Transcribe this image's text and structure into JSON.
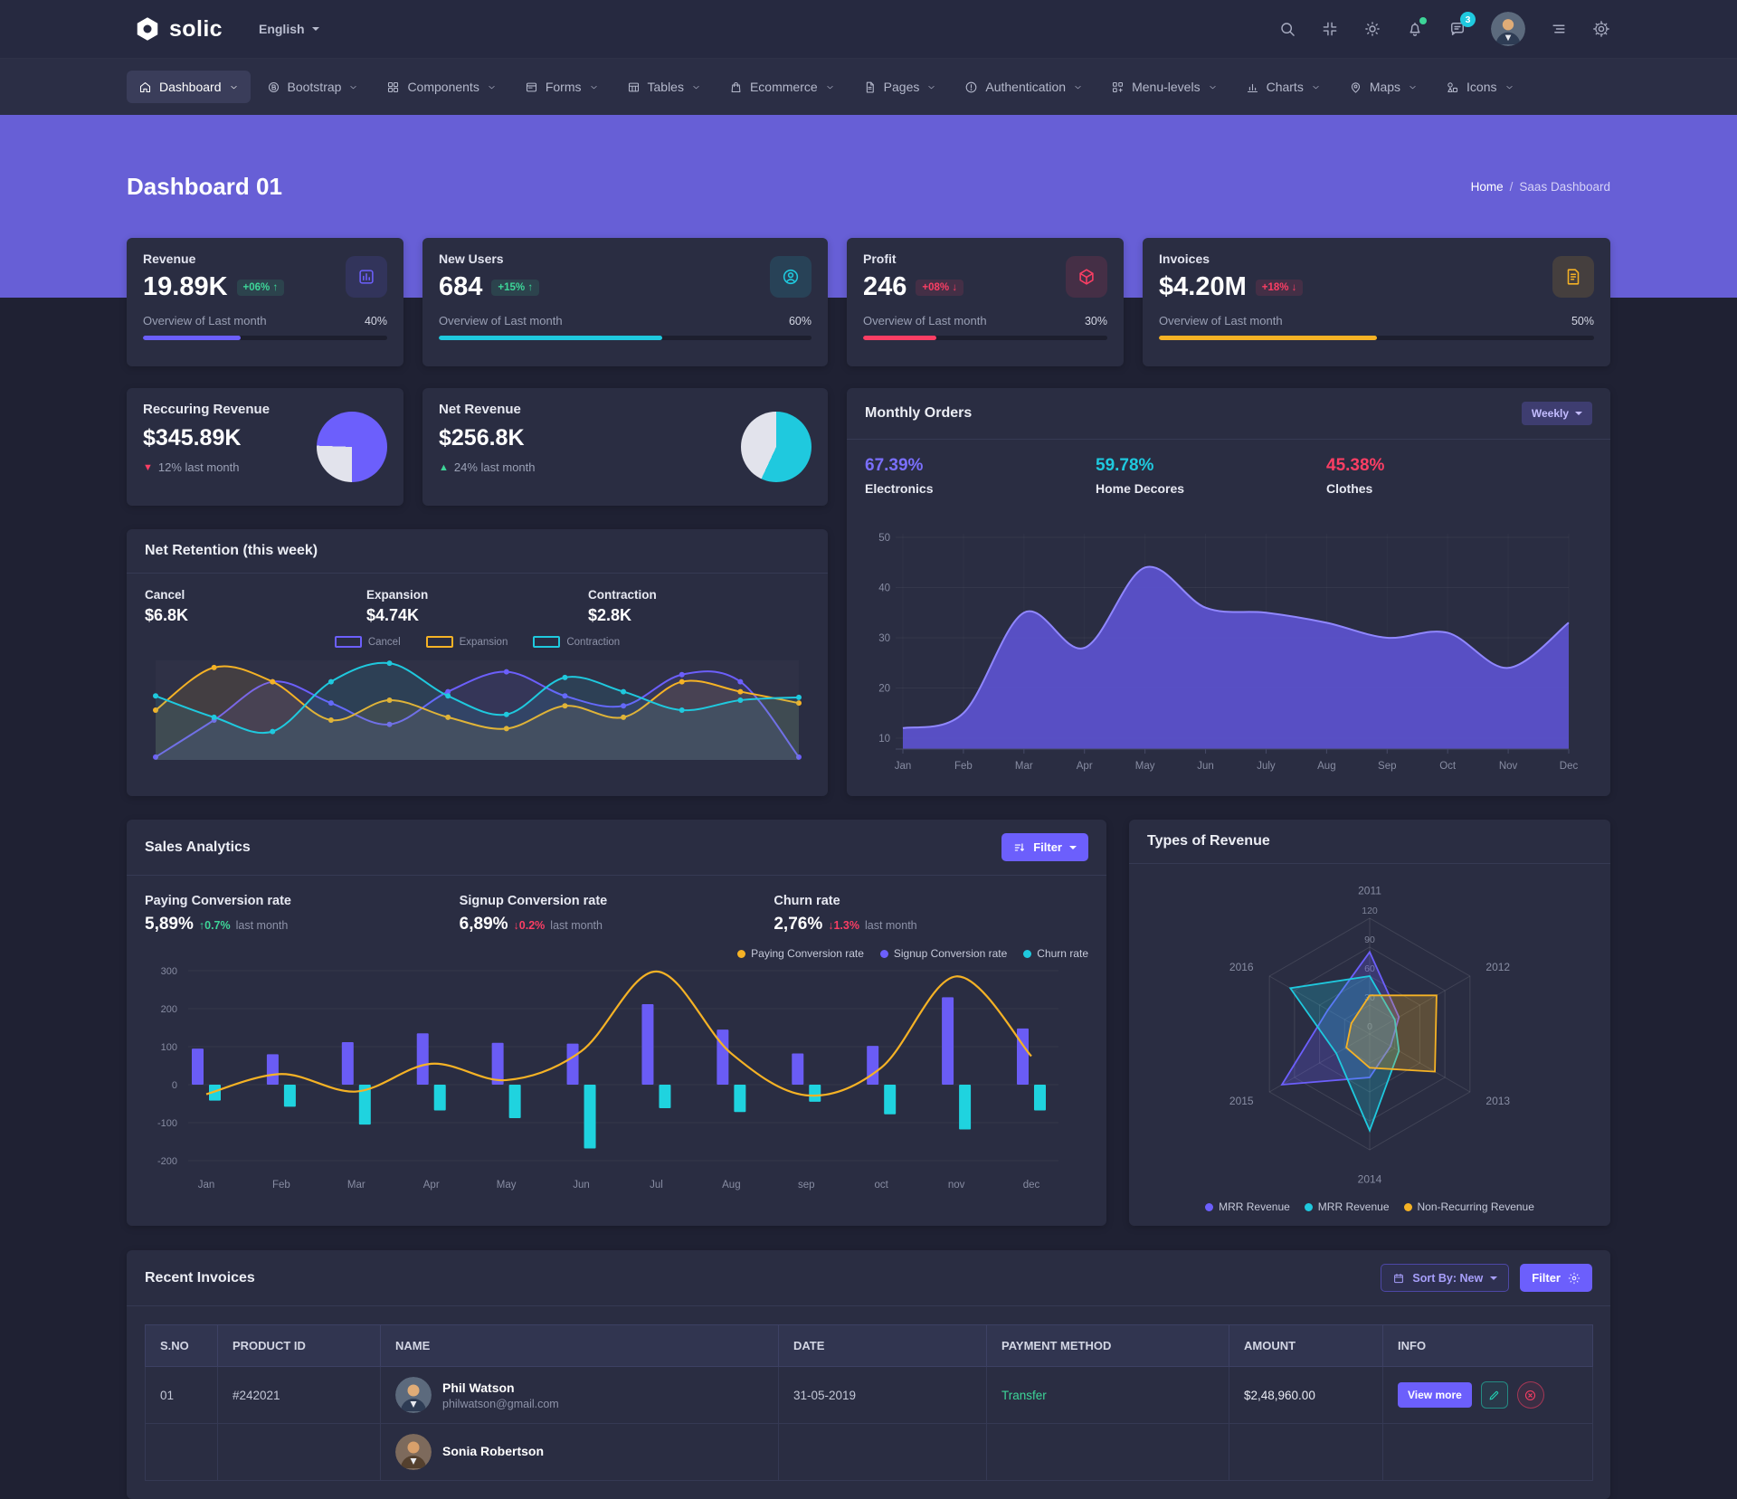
{
  "colors": {
    "accent_purple": "#6c5ffc",
    "accent_cyan": "#1fc9de",
    "accent_green": "#3dd598",
    "accent_red": "#fb3e64",
    "accent_orange": "#f5b225",
    "hero_purple": "#675fd6"
  },
  "topbar": {
    "brand": "solic",
    "language": "English",
    "message_badge": "3",
    "icons": [
      "search-icon",
      "compress-icon",
      "theme-light-icon",
      "notifications-bell-icon",
      "messages-icon",
      "user-avatar",
      "menu-toggle-icon",
      "settings-gear-icon"
    ]
  },
  "nav": {
    "items": [
      {
        "label": "Dashboard",
        "icon": "home-icon",
        "active": true
      },
      {
        "label": "Bootstrap",
        "icon": "bootstrap-icon"
      },
      {
        "label": "Components",
        "icon": "components-icon"
      },
      {
        "label": "Forms",
        "icon": "forms-icon"
      },
      {
        "label": "Tables",
        "icon": "tables-icon"
      },
      {
        "label": "Ecommerce",
        "icon": "ecommerce-icon"
      },
      {
        "label": "Pages",
        "icon": "pages-icon"
      },
      {
        "label": "Authentication",
        "icon": "authentication-icon"
      },
      {
        "label": "Menu-levels",
        "icon": "menu-levels-icon"
      },
      {
        "label": "Charts",
        "icon": "charts-icon"
      },
      {
        "label": "Maps",
        "icon": "maps-icon"
      },
      {
        "label": "Icons",
        "icon": "icons-icon"
      }
    ]
  },
  "hero": {
    "title": "Dashboard 01",
    "breadcrumb_home": "Home",
    "breadcrumb_current": "Saas Dashboard"
  },
  "stat_cards": [
    {
      "title": "Revenue",
      "value": "19.89K",
      "delta": "+06%",
      "direction": "up",
      "icon": "bar-chart-icon",
      "color": "#6c5ffc",
      "overview_label": "Overview of Last month",
      "percent": "40%",
      "percent_value": 40
    },
    {
      "title": "New Users",
      "value": "684",
      "delta": "+15%",
      "direction": "up",
      "icon": "user-circle-icon",
      "color": "#1fc9de",
      "overview_label": "Overview of Last month",
      "percent": "60%",
      "percent_value": 60
    },
    {
      "title": "Profit",
      "value": "246",
      "delta": "+08%",
      "direction": "down",
      "icon": "cube-icon",
      "color": "#fb3e64",
      "overview_label": "Overview of Last month",
      "percent": "30%",
      "percent_value": 30
    },
    {
      "title": "Invoices",
      "value": "$4.20M",
      "delta": "+18%",
      "direction": "down",
      "icon": "file-invoice-icon",
      "color": "#f5b225",
      "overview_label": "Overview of Last month",
      "percent": "50%",
      "percent_value": 50
    }
  ],
  "mini_cards": [
    {
      "title": "Reccuring Revenue",
      "value": "$345.89K",
      "change": "12% last month",
      "direction": "down",
      "pie_color": "#6c5ffc",
      "pie_start": -88,
      "pie_deg": 268
    },
    {
      "title": "Net Revenue",
      "value": "$256.8K",
      "change": "24% last month",
      "direction": "up",
      "pie_color": "#1fc9de",
      "pie_start": 0,
      "pie_deg": 205
    }
  ],
  "monthly_orders": {
    "title": "Monthly Orders",
    "period_label": "Weekly",
    "stats": [
      {
        "value": "67.39%",
        "label": "Electronics",
        "color": "#7a6ffc"
      },
      {
        "value": "59.78%",
        "label": "Home Decores",
        "color": "#1fc9de"
      },
      {
        "value": "45.38%",
        "label": "Clothes",
        "color": "#fb3e64"
      }
    ],
    "chart_data": {
      "type": "area",
      "categories": [
        "Jan",
        "Feb",
        "Mar",
        "Apr",
        "May",
        "Jun",
        "July",
        "Aug",
        "Sep",
        "Oct",
        "Nov",
        "Dec"
      ],
      "values": [
        12,
        15,
        35,
        28,
        44,
        36,
        35,
        33,
        30,
        31,
        24,
        33
      ],
      "ylim": [
        10,
        50
      ],
      "yticks": [
        10,
        20,
        30,
        40,
        50
      ],
      "area_color": "#5b51cb",
      "line_color": "#9087ff"
    }
  },
  "net_retention": {
    "title": "Net Retention (this week)",
    "stats": [
      {
        "label": "Cancel",
        "value": "$6.8K"
      },
      {
        "label": "Expansion",
        "value": "$4.74K"
      },
      {
        "label": "Contraction",
        "value": "$2.8K"
      }
    ],
    "chart_data": {
      "type": "line",
      "series": [
        {
          "name": "Cancel",
          "color": "#6c5ffc",
          "values": [
            2,
            28,
            55,
            40,
            25,
            48,
            62,
            45,
            38,
            60,
            55,
            2
          ]
        },
        {
          "name": "Expansion",
          "color": "#f5b225",
          "values": [
            35,
            65,
            55,
            28,
            42,
            30,
            22,
            38,
            30,
            55,
            48,
            40
          ]
        },
        {
          "name": "Contraction",
          "color": "#1fc9de",
          "values": [
            45,
            30,
            20,
            55,
            68,
            45,
            32,
            58,
            48,
            35,
            42,
            44
          ]
        }
      ]
    }
  },
  "sales_analytics": {
    "title": "Sales Analytics",
    "filter_label": "Filter",
    "stats": [
      {
        "label": "Paying Conversion rate",
        "value": "5,89%",
        "delta": "0.7%",
        "direction": "up",
        "suffix": "last month"
      },
      {
        "label": "Signup Conversion rate",
        "value": "6,89%",
        "delta": "0.2%",
        "direction": "down",
        "suffix": "last month"
      },
      {
        "label": "Churn rate",
        "value": "2,76%",
        "delta": "1.3%",
        "direction": "down",
        "suffix": "last month"
      }
    ],
    "legend": [
      {
        "label": "Paying Conversion rate",
        "color": "#f5b225"
      },
      {
        "label": "Signup Conversion rate",
        "color": "#6c5ffc"
      },
      {
        "label": "Churn rate",
        "color": "#1fc9de"
      }
    ],
    "chart_data": {
      "type": "bar+line",
      "categories": [
        "Jan",
        "Feb",
        "Mar",
        "Apr",
        "May",
        "Jun",
        "Jul",
        "Aug",
        "sep",
        "oct",
        "nov",
        "dec"
      ],
      "series": [
        {
          "name": "Signup Conversion rate",
          "type": "bar",
          "color": "#6a5cf5",
          "values": [
            95,
            80,
            112,
            135,
            110,
            108,
            212,
            145,
            82,
            102,
            230,
            148
          ]
        },
        {
          "name": "Churn rate",
          "type": "bar",
          "color": "#1fd3df",
          "values": [
            -42,
            -58,
            -105,
            -68,
            -88,
            -168,
            -62,
            -72,
            -45,
            -78,
            -118,
            -68
          ]
        },
        {
          "name": "Paying Conversion rate",
          "type": "line",
          "color": "#f5b225",
          "values": [
            -25,
            28,
            -18,
            55,
            12,
            88,
            298,
            82,
            -28,
            45,
            285,
            75
          ]
        }
      ],
      "ylim": [
        -200,
        300
      ],
      "yticks": [
        300,
        200,
        100,
        0,
        -100,
        -200
      ]
    }
  },
  "types_of_revenue": {
    "title": "Types of Revenue",
    "chart_data": {
      "type": "radar",
      "axes": [
        "2011",
        "2012",
        "2013",
        "2014",
        "2015",
        "2016"
      ],
      "ticks": [
        0,
        30,
        60,
        90,
        120
      ],
      "series": [
        {
          "name": "MRR Revenue",
          "color": "#6c5ffc",
          "values": [
            85,
            35,
            25,
            45,
            105,
            50
          ]
        },
        {
          "name": "MRR Revenue",
          "color": "#1fc9de",
          "values": [
            60,
            30,
            35,
            100,
            40,
            95
          ]
        },
        {
          "name": "Non-Recurring Revenue",
          "color": "#f5b225",
          "values": [
            40,
            80,
            78,
            35,
            28,
            22
          ]
        }
      ]
    }
  },
  "recent_invoices": {
    "title": "Recent Invoices",
    "sort_label": "Sort By: New",
    "filter_label": "Filter",
    "columns": [
      "S.NO",
      "PRODUCT ID",
      "NAME",
      "DATE",
      "PAYMENT METHOD",
      "AMOUNT",
      "INFO"
    ],
    "rows": [
      {
        "sno": "01",
        "product_id": "#242021",
        "name": "Phil Watson",
        "email": "philwatson@gmail.com",
        "date": "31-05-2019",
        "payment_method": "Transfer",
        "payment_color": "#3dd598",
        "amount": "$2,48,960.00",
        "info_label": "View more"
      },
      {
        "sno": "",
        "product_id": "",
        "name": "Sonia Robertson",
        "email": "",
        "date": "",
        "payment_method": "",
        "payment_color": "",
        "amount": "",
        "info_label": ""
      }
    ]
  }
}
